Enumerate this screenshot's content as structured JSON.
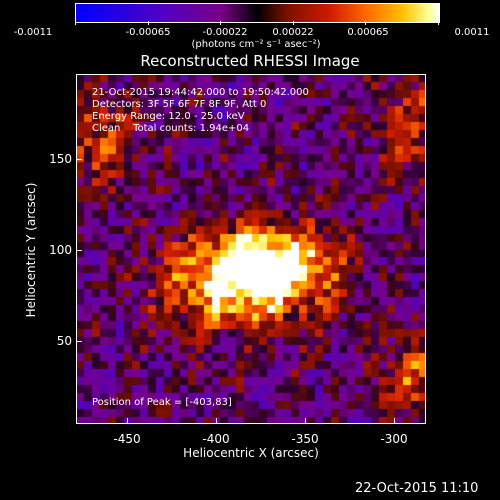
{
  "colorbar": {
    "ticks": [
      "-0.0011",
      "-0.00065",
      "-0.00022",
      "0.00022",
      "0.00065",
      "0.0011"
    ],
    "units": "(photons cm⁻² s⁻¹ asec⁻²)",
    "min": -0.0011,
    "max": 0.0011
  },
  "title": "Reconstructed RHESSI Image",
  "info": {
    "time_range": "21-Oct-2015 19:44:42.000 to 19:50:42.000",
    "detectors": "Detectors: 3F 5F 6F 7F 8F 9F, Att 0",
    "energy": "Energy Range: 12.0 - 25.0 keV",
    "method": "Clean    Total counts: 1.94e+04",
    "peak": "Position of Peak = [-403,83]"
  },
  "axes": {
    "xlabel": "Heliocentric X (arcsec)",
    "ylabel": "Heliocentric Y (arcsec)",
    "xticks": [
      "-450",
      "-400",
      "-350",
      "-300"
    ],
    "yticks": [
      "150",
      "100",
      "50"
    ],
    "xlim": [
      -478,
      -283
    ],
    "ylim": [
      0,
      192
    ]
  },
  "footer": "22-Oct-2015 11:10",
  "colors": {
    "background": "#000000",
    "foreground": "#ffffff"
  }
}
